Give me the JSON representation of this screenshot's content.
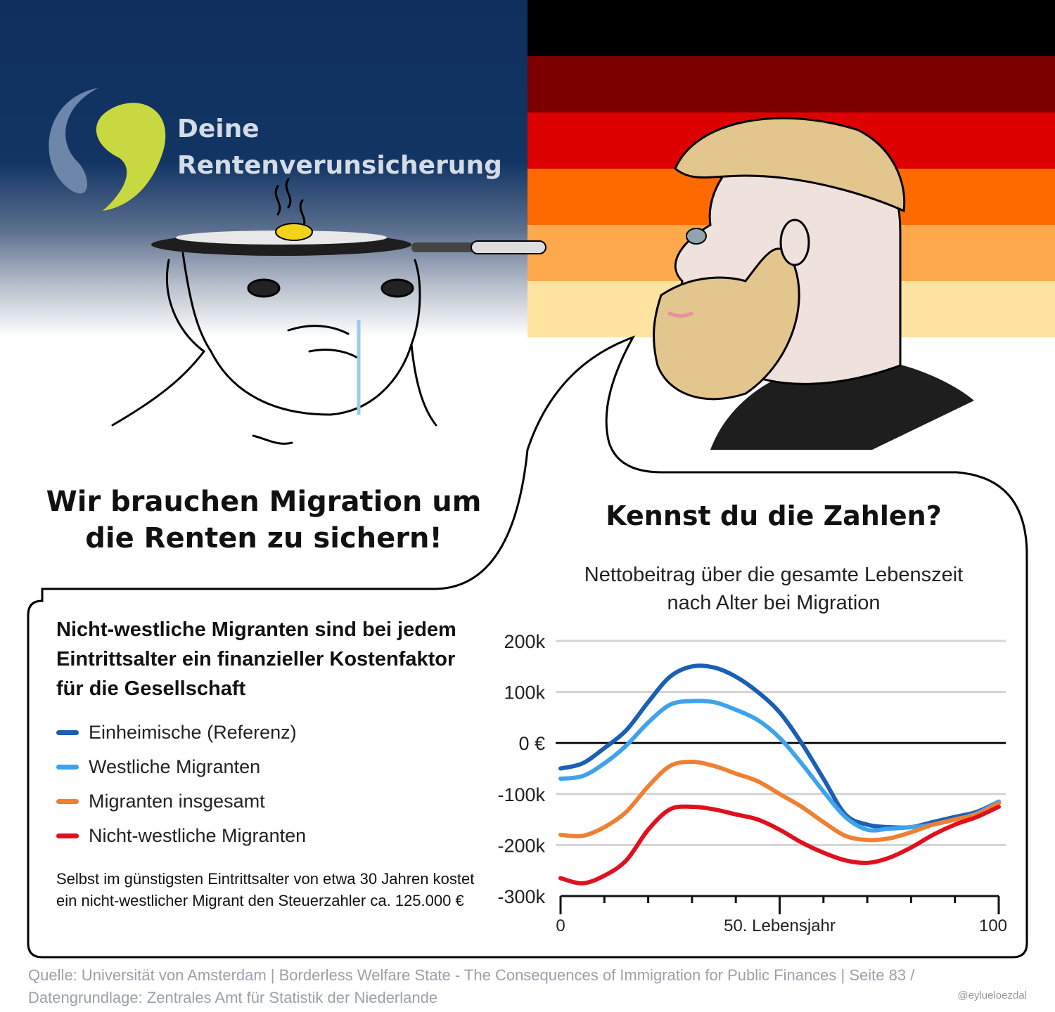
{
  "logo": {
    "line1": "Deine",
    "line2": "Rentenverunsicherung",
    "colors": {
      "left": "#6e86aa",
      "right": "#c8d840"
    }
  },
  "flag_colors": [
    "#000000",
    "#7d0000",
    "#dd0000",
    "#ff6a00",
    "#ffa94d",
    "#ffe3a0"
  ],
  "speech_left": "Wir brauchen Migration um die Renten zu sichern!",
  "speech_right": "Kennst du die Zahlen?",
  "subheadline": "Nicht-westliche Migranten sind bei jedem Eintrittsalter ein finanzieller Kostenfaktor für die Gesellschaft",
  "note": "Selbst im günstigsten Eintrittsalter von etwa 30 Jahren kostet ein nicht-westlicher Migrant den Steuerzahler ca. 125.000 €",
  "source": "Quelle: Universität von Amsterdam | Borderless Welfare State - The Consequences of Immigration for Public Finances | Seite 83 / Datengrundlage: Zentrales Amt für Statistik der Niederlande",
  "handle": "@eylueloezdal",
  "chart_data": {
    "type": "line",
    "title": "Nettobeitrag über die gesamte Lebenszeit nach Alter bei Migration",
    "xlabel": "50. Lebensjahr",
    "ylabel": "",
    "xlim": [
      0,
      100
    ],
    "ylim": [
      -300000,
      200000
    ],
    "x_tick_labels": [
      {
        "x": 0,
        "label": "0"
      },
      {
        "x": 50,
        "label": "50. Lebensjahr"
      },
      {
        "x": 100,
        "label": "100"
      }
    ],
    "y_tick_labels": [
      {
        "y": 200000,
        "label": "200k"
      },
      {
        "y": 100000,
        "label": "100k"
      },
      {
        "y": 0,
        "label": "0 €"
      },
      {
        "y": -100000,
        "label": "-100k"
      },
      {
        "y": -200000,
        "label": "-200k"
      },
      {
        "y": -300000,
        "label": "-300k"
      }
    ],
    "x": [
      0,
      5,
      10,
      15,
      20,
      25,
      30,
      35,
      40,
      45,
      50,
      55,
      60,
      65,
      70,
      75,
      80,
      85,
      90,
      95,
      100
    ],
    "series": [
      {
        "name": "Einheimische (Referenz)",
        "color": "#1a5fb4",
        "values": [
          -50000,
          -40000,
          -10000,
          25000,
          80000,
          130000,
          150000,
          148000,
          130000,
          100000,
          60000,
          0,
          -70000,
          -140000,
          -160000,
          -165000,
          -165000,
          -155000,
          -145000,
          -135000,
          -115000
        ]
      },
      {
        "name": "Westliche Migranten",
        "color": "#3fa3ec",
        "values": [
          -70000,
          -65000,
          -40000,
          -5000,
          40000,
          75000,
          82000,
          80000,
          65000,
          45000,
          10000,
          -40000,
          -95000,
          -145000,
          -170000,
          -168000,
          -165000,
          -160000,
          -150000,
          -138000,
          -115000
        ]
      },
      {
        "name": "Migranten insgesamt",
        "color": "#ef8032",
        "values": [
          -180000,
          -182000,
          -165000,
          -135000,
          -85000,
          -45000,
          -37000,
          -45000,
          -60000,
          -75000,
          -100000,
          -125000,
          -155000,
          -182000,
          -190000,
          -187000,
          -175000,
          -160000,
          -150000,
          -140000,
          -118000
        ]
      },
      {
        "name": "Nicht-westliche Migranten",
        "color": "#e0101e",
        "values": [
          -265000,
          -275000,
          -260000,
          -230000,
          -170000,
          -130000,
          -125000,
          -130000,
          -140000,
          -150000,
          -170000,
          -195000,
          -215000,
          -230000,
          -235000,
          -225000,
          -205000,
          -180000,
          -160000,
          -145000,
          -125000
        ]
      }
    ]
  }
}
